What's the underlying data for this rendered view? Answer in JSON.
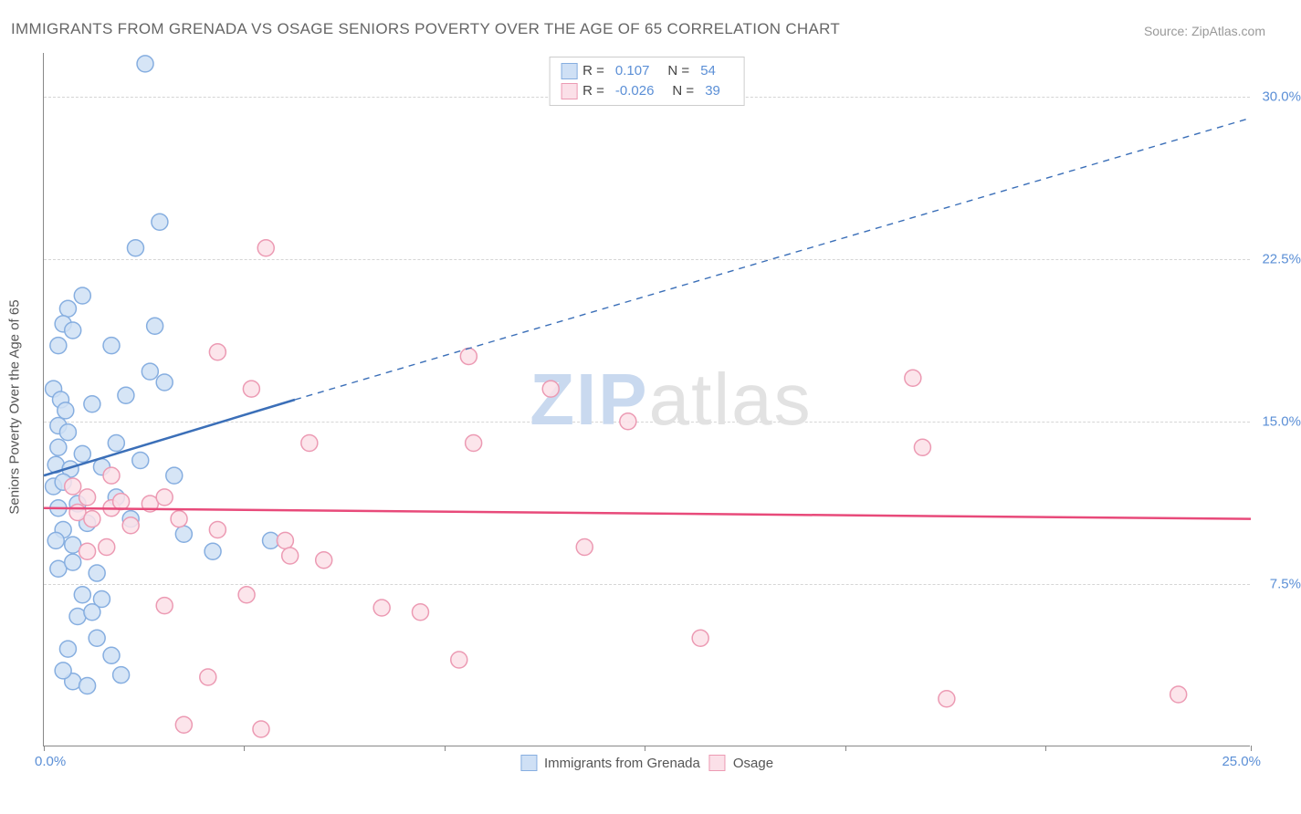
{
  "title": "IMMIGRANTS FROM GRENADA VS OSAGE SENIORS POVERTY OVER THE AGE OF 65 CORRELATION CHART",
  "source": "Source: ZipAtlas.com",
  "y_axis_label": "Seniors Poverty Over the Age of 65",
  "chart": {
    "type": "scatter",
    "xlim": [
      0,
      25
    ],
    "ylim": [
      0,
      32
    ],
    "x_tick_labels": {
      "start": "0.0%",
      "end": "25.0%"
    },
    "x_tick_positions": [
      0,
      4.15,
      8.3,
      12.45,
      16.6,
      20.75,
      25.0
    ],
    "y_gridlines": [
      {
        "value": 7.5,
        "label": "7.5%"
      },
      {
        "value": 15.0,
        "label": "15.0%"
      },
      {
        "value": 22.5,
        "label": "22.5%"
      },
      {
        "value": 30.0,
        "label": "30.0%"
      }
    ],
    "background_color": "#ffffff",
    "grid_color": "#d5d5d5",
    "axis_color": "#888888",
    "marker_radius": 9,
    "marker_stroke_width": 1.5,
    "series": [
      {
        "name": "Immigrants from Grenada",
        "marker_fill": "#cfe0f5",
        "marker_stroke": "#86aee0",
        "line_color": "#3b6fb8",
        "line_width": 2.5,
        "r_value": "0.107",
        "n_value": "54",
        "trend_solid": {
          "x1": 0,
          "y1": 12.5,
          "x2": 5.2,
          "y2": 16.0
        },
        "trend_dashed": {
          "x1": 5.2,
          "y1": 16.0,
          "x2": 25.0,
          "y2": 29.0
        },
        "points": [
          [
            2.1,
            31.5
          ],
          [
            2.4,
            24.2
          ],
          [
            1.9,
            23.0
          ],
          [
            0.8,
            20.8
          ],
          [
            0.5,
            20.2
          ],
          [
            0.4,
            19.5
          ],
          [
            0.6,
            19.2
          ],
          [
            2.3,
            19.4
          ],
          [
            0.3,
            18.5
          ],
          [
            1.4,
            18.5
          ],
          [
            2.2,
            17.3
          ],
          [
            0.2,
            16.5
          ],
          [
            0.35,
            16.0
          ],
          [
            0.45,
            15.5
          ],
          [
            1.0,
            15.8
          ],
          [
            1.7,
            16.2
          ],
          [
            0.3,
            14.8
          ],
          [
            0.5,
            14.5
          ],
          [
            2.5,
            16.8
          ],
          [
            0.3,
            13.8
          ],
          [
            0.8,
            13.5
          ],
          [
            1.5,
            14.0
          ],
          [
            0.25,
            13.0
          ],
          [
            0.55,
            12.8
          ],
          [
            1.2,
            12.9
          ],
          [
            2.0,
            13.2
          ],
          [
            0.2,
            12.0
          ],
          [
            0.4,
            12.2
          ],
          [
            2.7,
            12.5
          ],
          [
            0.3,
            11.0
          ],
          [
            0.7,
            11.2
          ],
          [
            1.5,
            11.5
          ],
          [
            0.4,
            10.0
          ],
          [
            0.9,
            10.3
          ],
          [
            1.8,
            10.5
          ],
          [
            0.25,
            9.5
          ],
          [
            0.6,
            9.3
          ],
          [
            2.9,
            9.8
          ],
          [
            4.7,
            9.5
          ],
          [
            0.3,
            8.2
          ],
          [
            0.6,
            8.5
          ],
          [
            1.1,
            8.0
          ],
          [
            3.5,
            9.0
          ],
          [
            0.8,
            7.0
          ],
          [
            1.2,
            6.8
          ],
          [
            0.7,
            6.0
          ],
          [
            1.0,
            6.2
          ],
          [
            0.5,
            4.5
          ],
          [
            1.4,
            4.2
          ],
          [
            0.6,
            3.0
          ],
          [
            0.9,
            2.8
          ],
          [
            0.4,
            3.5
          ],
          [
            1.6,
            3.3
          ],
          [
            1.1,
            5.0
          ]
        ]
      },
      {
        "name": "Osage",
        "marker_fill": "#fbe0e8",
        "marker_stroke": "#ec9ab3",
        "line_color": "#e84a7a",
        "line_width": 2.5,
        "r_value": "-0.026",
        "n_value": "39",
        "trend_solid": {
          "x1": 0,
          "y1": 11.0,
          "x2": 25.0,
          "y2": 10.5
        },
        "points": [
          [
            4.6,
            23.0
          ],
          [
            3.6,
            18.2
          ],
          [
            8.8,
            18.0
          ],
          [
            18.0,
            17.0
          ],
          [
            10.5,
            16.5
          ],
          [
            4.3,
            16.5
          ],
          [
            12.1,
            15.0
          ],
          [
            5.5,
            14.0
          ],
          [
            8.9,
            14.0
          ],
          [
            18.2,
            13.8
          ],
          [
            1.4,
            12.5
          ],
          [
            0.6,
            12.0
          ],
          [
            0.9,
            11.5
          ],
          [
            1.4,
            11.0
          ],
          [
            1.6,
            11.3
          ],
          [
            2.2,
            11.2
          ],
          [
            2.5,
            11.5
          ],
          [
            0.7,
            10.8
          ],
          [
            1.0,
            10.5
          ],
          [
            1.8,
            10.2
          ],
          [
            2.8,
            10.5
          ],
          [
            3.6,
            10.0
          ],
          [
            5.0,
            9.5
          ],
          [
            11.2,
            9.2
          ],
          [
            0.9,
            9.0
          ],
          [
            1.3,
            9.2
          ],
          [
            5.1,
            8.8
          ],
          [
            5.8,
            8.6
          ],
          [
            4.2,
            7.0
          ],
          [
            2.5,
            6.5
          ],
          [
            7.0,
            6.4
          ],
          [
            7.8,
            6.2
          ],
          [
            13.6,
            5.0
          ],
          [
            8.6,
            4.0
          ],
          [
            3.4,
            3.2
          ],
          [
            23.5,
            2.4
          ],
          [
            2.9,
            1.0
          ],
          [
            4.5,
            0.8
          ],
          [
            18.7,
            2.2
          ]
        ]
      }
    ]
  },
  "legend_top_r_label": "R =",
  "legend_top_n_label": "N =",
  "watermark": {
    "part1": "ZIP",
    "part2": "atlas"
  }
}
